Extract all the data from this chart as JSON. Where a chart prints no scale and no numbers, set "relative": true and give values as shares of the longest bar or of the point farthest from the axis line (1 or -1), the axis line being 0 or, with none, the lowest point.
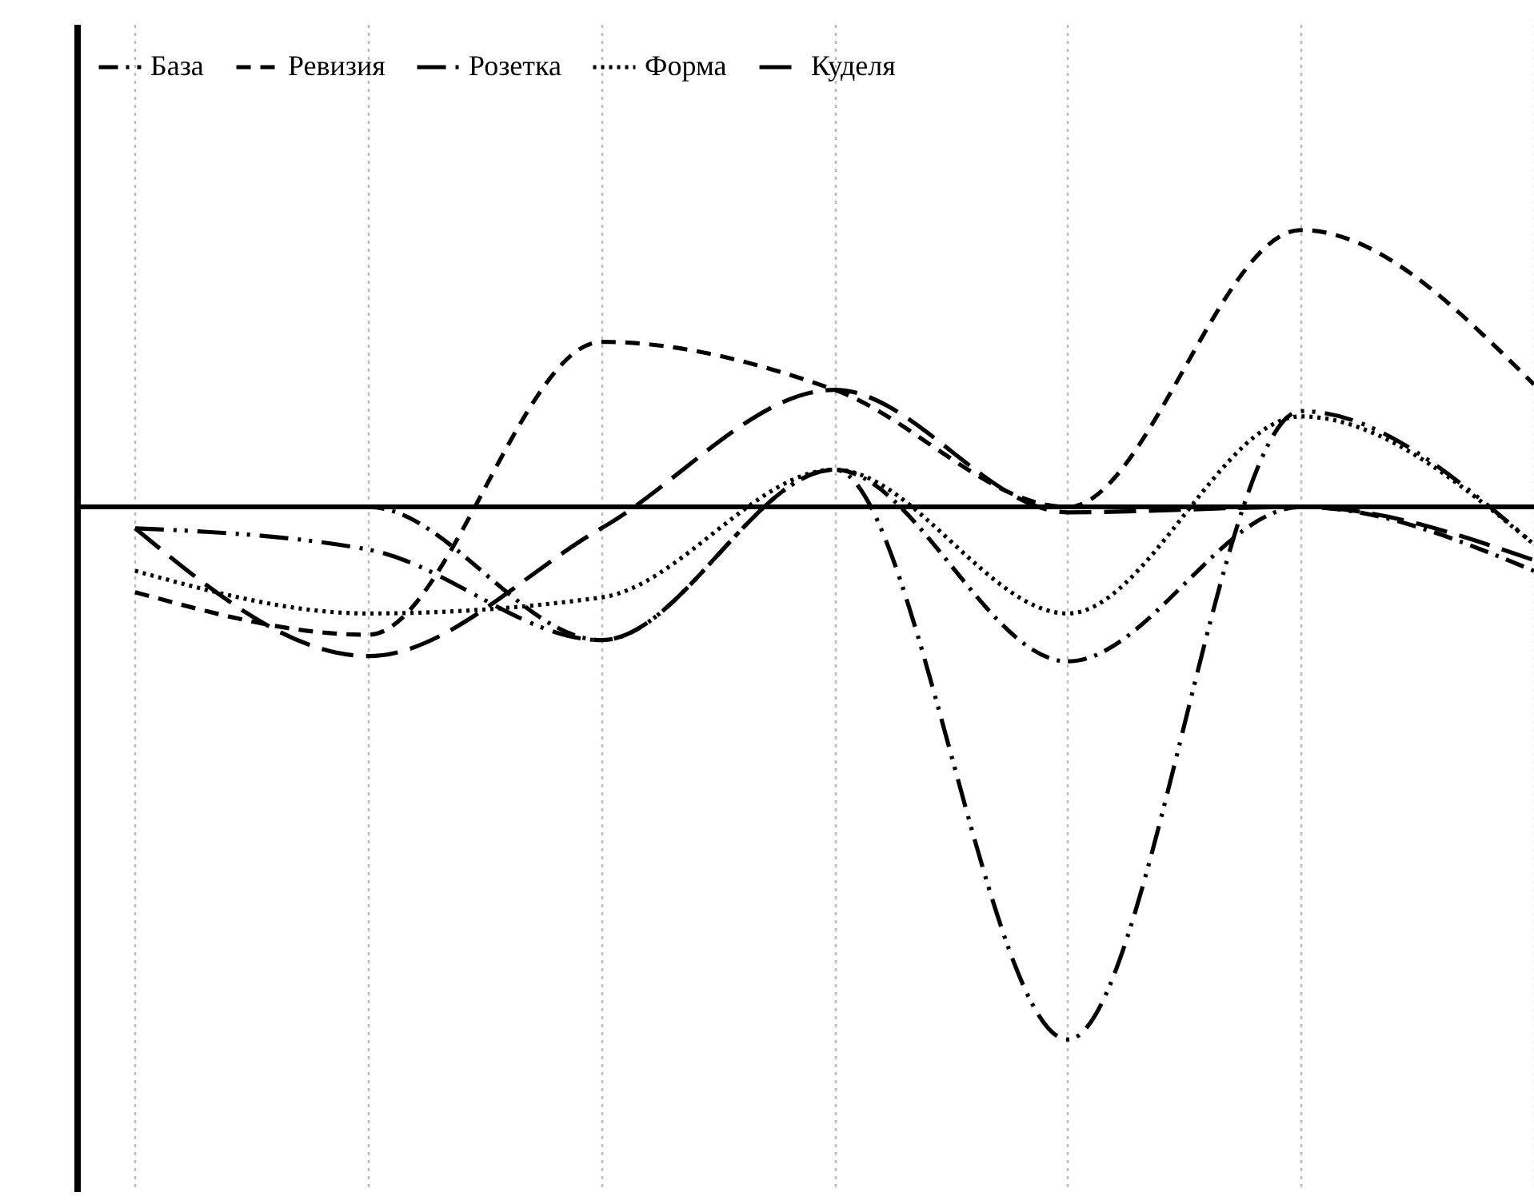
{
  "chart_data": {
    "type": "line",
    "relative": true,
    "categories": [
      null,
      null,
      null,
      null,
      null,
      null,
      null
    ],
    "grid": "x",
    "legend": "top",
    "tick_labels": false,
    "series": [
      {
        "name": "База",
        "color": "#000000",
        "line_style": "dashdot",
        "values": [
          0,
          0,
          -0.25,
          0.07,
          -0.29,
          0,
          -0.12
        ]
      },
      {
        "name": "Ревизия",
        "color": "#000000",
        "line_style": "dashed",
        "values": [
          -0.16,
          -0.24,
          0.31,
          0.22,
          0,
          0.52,
          0.23
        ]
      },
      {
        "name": "Розетка",
        "color": "#000000",
        "line_style": "dashdotdot",
        "values": [
          -0.04,
          -0.08,
          -0.25,
          0.07,
          -1,
          0.18,
          -0.07
        ]
      },
      {
        "name": "Форма",
        "color": "#000000",
        "line_style": "dotted",
        "values": [
          -0.12,
          -0.2,
          -0.17,
          0.07,
          -0.2,
          0.17,
          -0.07
        ]
      },
      {
        "name": "Куделя",
        "color": "#000000",
        "line_style": "longdash",
        "values": [
          -0.04,
          -0.28,
          -0.04,
          0.22,
          -0.01,
          0,
          -0.1
        ]
      }
    ],
    "ref_lines": [
      {
        "axis": "y",
        "value": 0,
        "color": "#000000"
      }
    ]
  }
}
